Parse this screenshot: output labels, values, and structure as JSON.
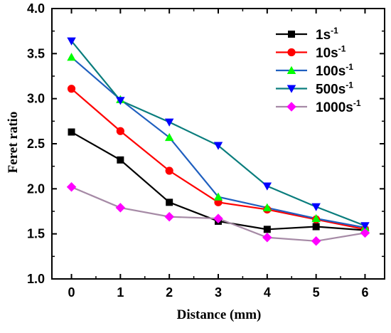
{
  "chart_data": {
    "type": "line",
    "xlabel": "Distance (mm)",
    "ylabel": "Feret ratio",
    "x": [
      0,
      1,
      2,
      3,
      4,
      5,
      6
    ],
    "xticks": [
      "0",
      "1",
      "2",
      "3",
      "4",
      "5",
      "6"
    ],
    "yticks": [
      "1.0",
      "1.5",
      "2.0",
      "2.5",
      "3.0",
      "3.5",
      "4.0"
    ],
    "xlim": [
      -0.4,
      6.4
    ],
    "ylim": [
      1.0,
      4.0
    ],
    "grid": false,
    "legend_position": "top-right",
    "series": [
      {
        "name": "1s",
        "sup": "-1",
        "color": "#000000",
        "marker": "square",
        "values": [
          2.63,
          2.32,
          1.85,
          1.64,
          1.55,
          1.58,
          1.54
        ]
      },
      {
        "name": "10s",
        "sup": "-1",
        "color": "#ff0000",
        "marker": "circle",
        "values": [
          3.11,
          2.64,
          2.2,
          1.85,
          1.77,
          1.66,
          1.55
        ]
      },
      {
        "name": "100s",
        "sup": "-1",
        "color": "#00ff00",
        "marker": "triangle-up",
        "line_color": "#1f5fbf",
        "values": [
          3.46,
          2.99,
          2.57,
          1.91,
          1.79,
          1.67,
          1.57
        ]
      },
      {
        "name": "500s",
        "sup": "-1",
        "color": "#0000ff",
        "marker": "triangle-down",
        "line_color": "#0a7d7d",
        "values": [
          3.64,
          2.98,
          2.74,
          2.48,
          2.03,
          1.8,
          1.59
        ]
      },
      {
        "name": "1000s",
        "sup": "-1",
        "color": "#ff00ff",
        "marker": "diamond",
        "line_color": "#a68aa6",
        "values": [
          2.02,
          1.79,
          1.69,
          1.67,
          1.46,
          1.42,
          1.51
        ]
      }
    ]
  }
}
